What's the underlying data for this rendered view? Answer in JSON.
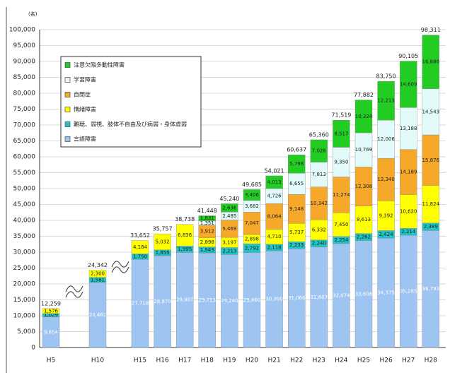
{
  "chart_data": {
    "type": "stacked_bar",
    "y_unit": "(名)",
    "categories": [
      "H5",
      "H10",
      "H15",
      "H16",
      "H17",
      "H18",
      "H19",
      "H20",
      "H21",
      "H22",
      "H23",
      "H24",
      "H25",
      "H26",
      "H27",
      "H28"
    ],
    "series": [
      {
        "name": "言語障害",
        "color": "#9ec5f2",
        "values": [
          9654,
          20461,
          27718,
          28870,
          29907,
          29713,
          29240,
          29860,
          30390,
          31066,
          31607,
          32674,
          33606,
          34375,
          35285,
          36793
        ],
        "value_labels": [
          "9,654",
          "20,461",
          "27,718",
          "28,870",
          "29,907",
          "29,713",
          "29,240",
          "29,860",
          "30,390",
          "31,066",
          "31,607",
          "32,674",
          "33,606",
          "34,375",
          "35,285",
          "36,793"
        ]
      },
      {
        "name": "難聴、弱視、肢体不自由及び病弱・身体虚弱",
        "color": "#20c4c4",
        "values": [
          1029,
          1581,
          1750,
          1855,
          1995,
          1943,
          2213,
          2792,
          2118,
          2233,
          2240,
          2254,
          2262,
          2424,
          2214,
          2389
        ],
        "value_labels": [
          "1,029",
          "1,581",
          "1,750",
          "1,855",
          "1,995",
          "1,943",
          "2,213",
          "2,792",
          "2,118",
          "2,233",
          "2,240",
          "2,254",
          "2,262",
          "2,424",
          "2,214",
          "2,389"
        ]
      },
      {
        "name": "情緒障害",
        "color": "#ffff00",
        "values": [
          1576,
          2300,
          4184,
          5032,
          6836,
          2898,
          3197,
          2898,
          4710,
          5737,
          6332,
          7450,
          8613,
          9392,
          10620,
          11824
        ],
        "value_labels": [
          "1,576",
          "2,300",
          "4,184",
          "5,032",
          "6,836",
          "2,898",
          "3,197",
          "2,898",
          "4,710",
          "5,737",
          "6,332",
          "7,450",
          "8,613",
          "9,392",
          "10,620",
          "11,824"
        ]
      },
      {
        "name": "自閉症",
        "color": "#f5a82a",
        "values": [
          null,
          null,
          null,
          null,
          null,
          3912,
          5469,
          7047,
          8064,
          9148,
          10342,
          11274,
          12308,
          13340,
          14189,
          15876
        ],
        "value_labels": [
          null,
          null,
          null,
          null,
          null,
          "3,912",
          "5,469",
          "7,047",
          "8,064",
          "9,148",
          "10,342",
          "11,274",
          "12,308",
          "13,340",
          "14,189",
          "15,876"
        ]
      },
      {
        "name": "学習障害",
        "color": "#e2fafa",
        "values": [
          null,
          null,
          null,
          null,
          null,
          1351,
          2485,
          3682,
          4726,
          6655,
          7813,
          9350,
          10769,
          12006,
          13188,
          14543
        ],
        "value_labels": [
          null,
          null,
          null,
          null,
          null,
          "1,351",
          "2,485",
          "3,682",
          "4,726",
          "6,655",
          "7,813",
          "9,350",
          "10,769",
          "12,006",
          "13,188",
          "14,543"
        ]
      },
      {
        "name": "注意欠陥多動性障害",
        "color": "#22cc22",
        "values": [
          null,
          null,
          null,
          null,
          null,
          1631,
          2636,
          3406,
          4013,
          5798,
          7026,
          8517,
          10324,
          12213,
          14609,
          16886
        ],
        "value_labels": [
          null,
          null,
          null,
          null,
          null,
          "1,631",
          "2,636",
          "3,406",
          "4,013",
          "5,798",
          "7,026",
          "8,517",
          "10,324",
          "12,213",
          "14,609",
          "16,886"
        ]
      }
    ],
    "total_labels": [
      "12,259",
      "24,342",
      "33,652",
      "35,757",
      "38,738",
      "41,448",
      "45,240",
      "49,685",
      "54,021",
      "60,637",
      "65,360",
      "71,519",
      "77,882",
      "83,750",
      "90,105",
      "98,311"
    ],
    "ylim": [
      0,
      100000
    ],
    "yticks": [
      {
        "value": 0,
        "label": "0"
      },
      {
        "value": 5000,
        "label": "5,000"
      },
      {
        "value": 10000,
        "label": "10,000"
      },
      {
        "value": 15000,
        "label": "15,000"
      },
      {
        "value": 20000,
        "label": "20,000"
      },
      {
        "value": 25000,
        "label": "25,000"
      },
      {
        "value": 30000,
        "label": "30,000"
      },
      {
        "value": 35000,
        "label": "35,000"
      },
      {
        "value": 40000,
        "label": "40,000"
      },
      {
        "value": 45000,
        "label": "45,000"
      },
      {
        "value": 50000,
        "label": "50,000"
      },
      {
        "value": 55000,
        "label": "55,000"
      },
      {
        "value": 60000,
        "label": "60,000"
      },
      {
        "value": 65000,
        "label": "65,000"
      },
      {
        "value": 70000,
        "label": "70,000"
      },
      {
        "value": 75000,
        "label": "75,000"
      },
      {
        "value": 80000,
        "label": "80,000"
      },
      {
        "value": 85000,
        "label": "85,000"
      },
      {
        "value": 90000,
        "label": "90,000"
      },
      {
        "value": 95000,
        "label": "95,000"
      },
      {
        "value": 100000,
        "label": "100,000"
      }
    ],
    "grid": true,
    "legend": "upper left"
  }
}
